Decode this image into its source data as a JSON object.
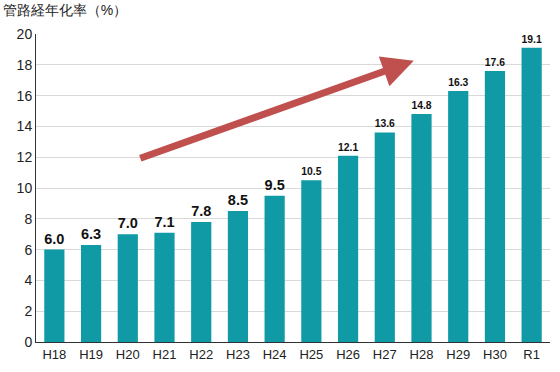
{
  "chart_data": {
    "type": "bar",
    "ylabel": "管路経年化率（%）",
    "categories": [
      "H18",
      "H19",
      "H20",
      "H21",
      "H22",
      "H23",
      "H24",
      "H25",
      "H26",
      "H27",
      "H28",
      "H29",
      "H30",
      "R1"
    ],
    "values": [
      6.0,
      6.3,
      7.0,
      7.1,
      7.8,
      8.5,
      9.5,
      10.5,
      12.1,
      13.6,
      14.8,
      16.3,
      17.6,
      19.1
    ],
    "value_labels": [
      "6.0",
      "6.3",
      "7.0",
      "7.1",
      "7.8",
      "8.5",
      "9.5",
      "10.5",
      "12.1",
      "13.6",
      "14.8",
      "16.3",
      "17.6",
      "19.1"
    ],
    "color": "#0f9aa6",
    "ylim": [
      0,
      20
    ],
    "yticks": [
      0,
      2,
      4,
      6,
      8,
      10,
      12,
      14,
      16,
      18,
      20
    ],
    "grid": true,
    "data_labels": true
  }
}
